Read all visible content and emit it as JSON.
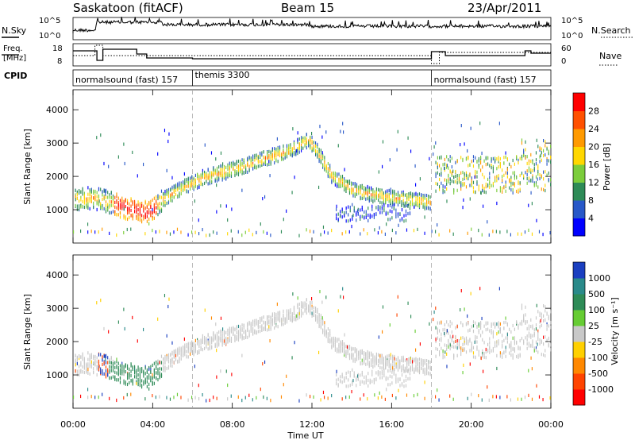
{
  "header": {
    "station": "Saskatoon (fitACF)",
    "beam": "Beam 15",
    "date": "23/Apr/2011"
  },
  "strips": {
    "nsky_label": "N.Sky",
    "nsearch_label": "N.Search",
    "freq_label_1": "Freq.",
    "freq_label_2": "[MHz]",
    "nave_label": "Nave",
    "cpid_label": "CPID",
    "nsky_ticks": [
      "10^5",
      "10^0"
    ],
    "nsearch_ticks": [
      "10^5",
      "10^0"
    ],
    "freq_ticks": [
      "18",
      "8"
    ],
    "nave_ticks": [
      "60",
      "0"
    ],
    "modes": [
      {
        "name": "normalsound (fast) 157",
        "start_hour": 0,
        "end_hour": 6
      },
      {
        "name": "themis 3300",
        "start_hour": 6,
        "end_hour": 18
      },
      {
        "name": "normalsound (fast) 157",
        "start_hour": 18,
        "end_hour": 24
      }
    ]
  },
  "chart_data": [
    {
      "type": "heatmap",
      "name": "power",
      "ylabel": "Slant Range [km]",
      "xlabel": "",
      "x_ticks": [
        "00:00",
        "04:00",
        "08:00",
        "12:00",
        "16:00",
        "20:00",
        "00:00"
      ],
      "x_tick_hours": [
        0,
        4,
        8,
        12,
        16,
        20,
        24
      ],
      "y_ticks": [
        1000,
        2000,
        3000,
        4000
      ],
      "xlim": [
        0,
        24
      ],
      "ylim": [
        0,
        4600
      ],
      "colorbar": {
        "label": "Power [dB]",
        "ticks": [
          "4",
          "8",
          "12",
          "16",
          "20",
          "24",
          "28"
        ],
        "colors": [
          "#0000ff",
          "#2858c8",
          "#2e8b57",
          "#7ccd3c",
          "#ffd700",
          "#ff9a00",
          "#ff5000",
          "#ff0000"
        ]
      }
    },
    {
      "type": "heatmap",
      "name": "velocity",
      "ylabel": "Slant Range [km]",
      "xlabel": "Time UT",
      "x_ticks": [
        "00:00",
        "04:00",
        "08:00",
        "12:00",
        "16:00",
        "20:00",
        "00:00"
      ],
      "x_tick_hours": [
        0,
        4,
        8,
        12,
        16,
        20,
        24
      ],
      "y_ticks": [
        1000,
        2000,
        3000,
        4000
      ],
      "xlim": [
        0,
        24
      ],
      "ylim": [
        0,
        4600
      ],
      "colorbar": {
        "label": "Velocity [m s⁻¹]",
        "ticks": [
          "1000",
          "500",
          "100",
          "25",
          "-25",
          "-100",
          "-500",
          "-1000"
        ],
        "colors": [
          "#1a3fc0",
          "#2a8a8a",
          "#2e8b57",
          "#66cc33",
          "#c8c8c8",
          "#ffd000",
          "#ff8800",
          "#ff4400",
          "#ff0000"
        ]
      }
    }
  ]
}
